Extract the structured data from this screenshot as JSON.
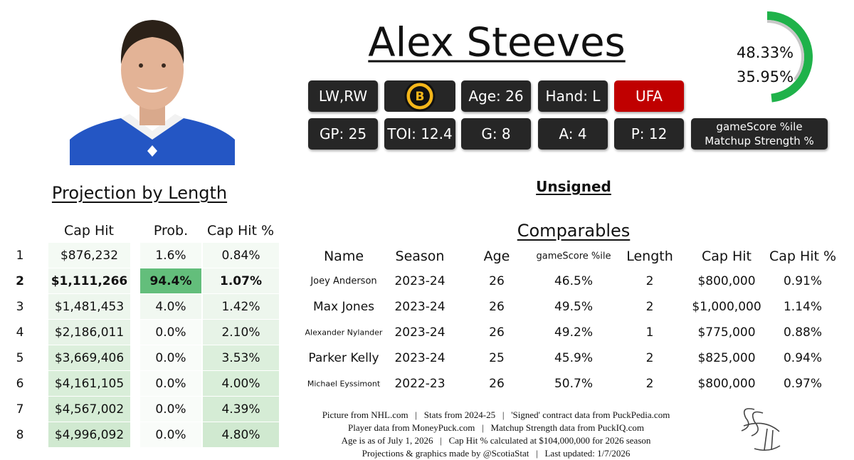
{
  "player": {
    "name": "Alex Steeves",
    "status": "Unsigned",
    "badges_top": [
      "LW,RW",
      "Age: 26",
      "Hand: L",
      "UFA"
    ],
    "badges_bottom": [
      "GP: 25",
      "TOI: 12.4",
      "G: 8",
      "A: 4",
      "P: 12"
    ],
    "gauge_legend": [
      "gameScore %ile",
      "Matchup Strength %"
    ]
  },
  "gauge": {
    "values": [
      48.33,
      35.95
    ],
    "value_labels": [
      "48.33%",
      "35.95%"
    ],
    "colors": [
      "#1fb24a",
      "#c8c8c8"
    ]
  },
  "projection": {
    "title": "Projection by Length",
    "columns": [
      "Cap Hit",
      "Prob.",
      "Cap Hit %"
    ],
    "rows": [
      [
        "1",
        "$876,232",
        "1.6%",
        "0.84%"
      ],
      [
        "2",
        "$1,111,266",
        "94.4%",
        "1.07%"
      ],
      [
        "3",
        "$1,481,453",
        "4.0%",
        "1.42%"
      ],
      [
        "4",
        "$2,186,011",
        "0.0%",
        "2.10%"
      ],
      [
        "5",
        "$3,669,406",
        "0.0%",
        "3.53%"
      ],
      [
        "6",
        "$4,161,105",
        "0.0%",
        "4.00%"
      ],
      [
        "7",
        "$4,567,002",
        "0.0%",
        "4.39%"
      ],
      [
        "8",
        "$4,996,092",
        "0.0%",
        "4.80%"
      ]
    ],
    "cap_hit_colors": [
      "#f4faf4",
      "#f1f8f1",
      "#edf6ed",
      "#e7f3e7",
      "#dcefdc",
      "#d9eed9",
      "#d5ecd5",
      "#d0e9d0"
    ],
    "prob_colors": [
      "#f6fbf6",
      "#63be7b",
      "#f1f8f1",
      "#f9fcf9",
      "#f9fcf9",
      "#f9fcf9",
      "#f9fcf9",
      "#f9fcf9"
    ]
  },
  "comparables": {
    "title": "Comparables",
    "columns": [
      "Name",
      "Season",
      "Age",
      "gameScore %ile",
      "Length",
      "Cap Hit",
      "Cap Hit %"
    ],
    "rows": [
      [
        "Joey Anderson",
        "2023-24",
        "26",
        "46.5%",
        "2",
        "$800,000",
        "0.91%"
      ],
      [
        "Max Jones",
        "2023-24",
        "26",
        "49.5%",
        "2",
        "$1,000,000",
        "1.14%"
      ],
      [
        "Alexander Nylander",
        "2023-24",
        "26",
        "49.2%",
        "1",
        "$775,000",
        "0.88%"
      ],
      [
        "Parker Kelly",
        "2023-24",
        "25",
        "45.9%",
        "2",
        "$825,000",
        "0.94%"
      ],
      [
        "Michael Eyssimont",
        "2022-23",
        "26",
        "50.7%",
        "2",
        "$800,000",
        "0.97%"
      ]
    ]
  },
  "footer": [
    "Picture from NHL.com   |   Stats from 2024-25   |   'Signed' contract data from PuckPedia.com",
    "Player data from MoneyPuck.com   |   Matchup Strength data from PuckIQ.com",
    "Age is as of July 1, 2026   |   Cap Hit % calculated at $104,000,000 for 2026 season",
    "Projections & graphics made by @ScotiaStat   |   Last updated: 1/7/2026"
  ]
}
